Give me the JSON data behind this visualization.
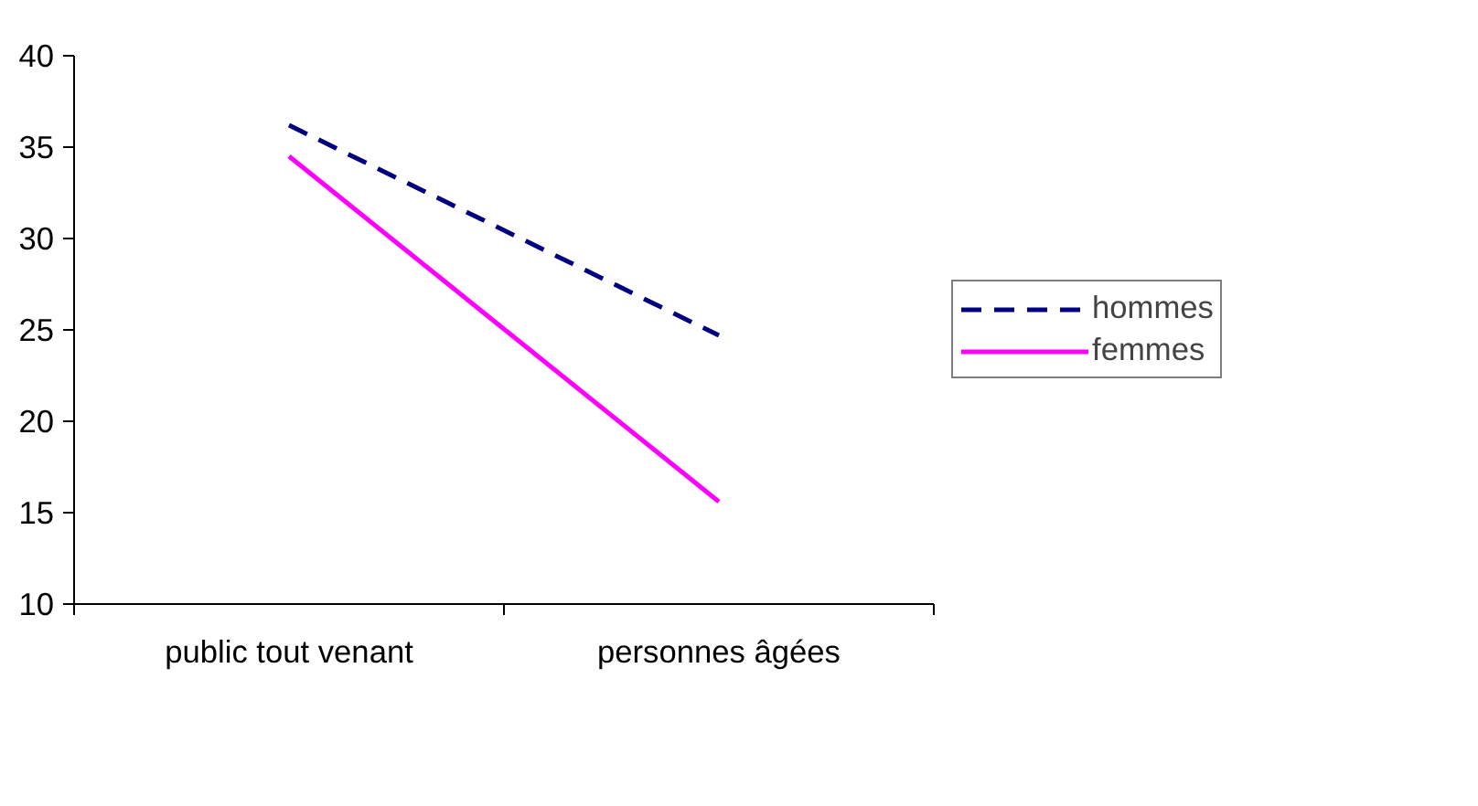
{
  "chart_data": {
    "type": "line",
    "categories": [
      "public tout venant",
      "personnes âgées"
    ],
    "series": [
      {
        "name": "hommes",
        "color": "#000080",
        "values": [
          36.2,
          24.7
        ],
        "line_style": "dashed"
      },
      {
        "name": "femmes",
        "color": "#ff00ff",
        "values": [
          34.5,
          15.6
        ],
        "line_style": "solid"
      }
    ],
    "ylim": [
      10,
      40
    ],
    "yticks": [
      10,
      15,
      20,
      25,
      30,
      35,
      40
    ],
    "grid": false,
    "legend": "right",
    "marker": "none"
  }
}
